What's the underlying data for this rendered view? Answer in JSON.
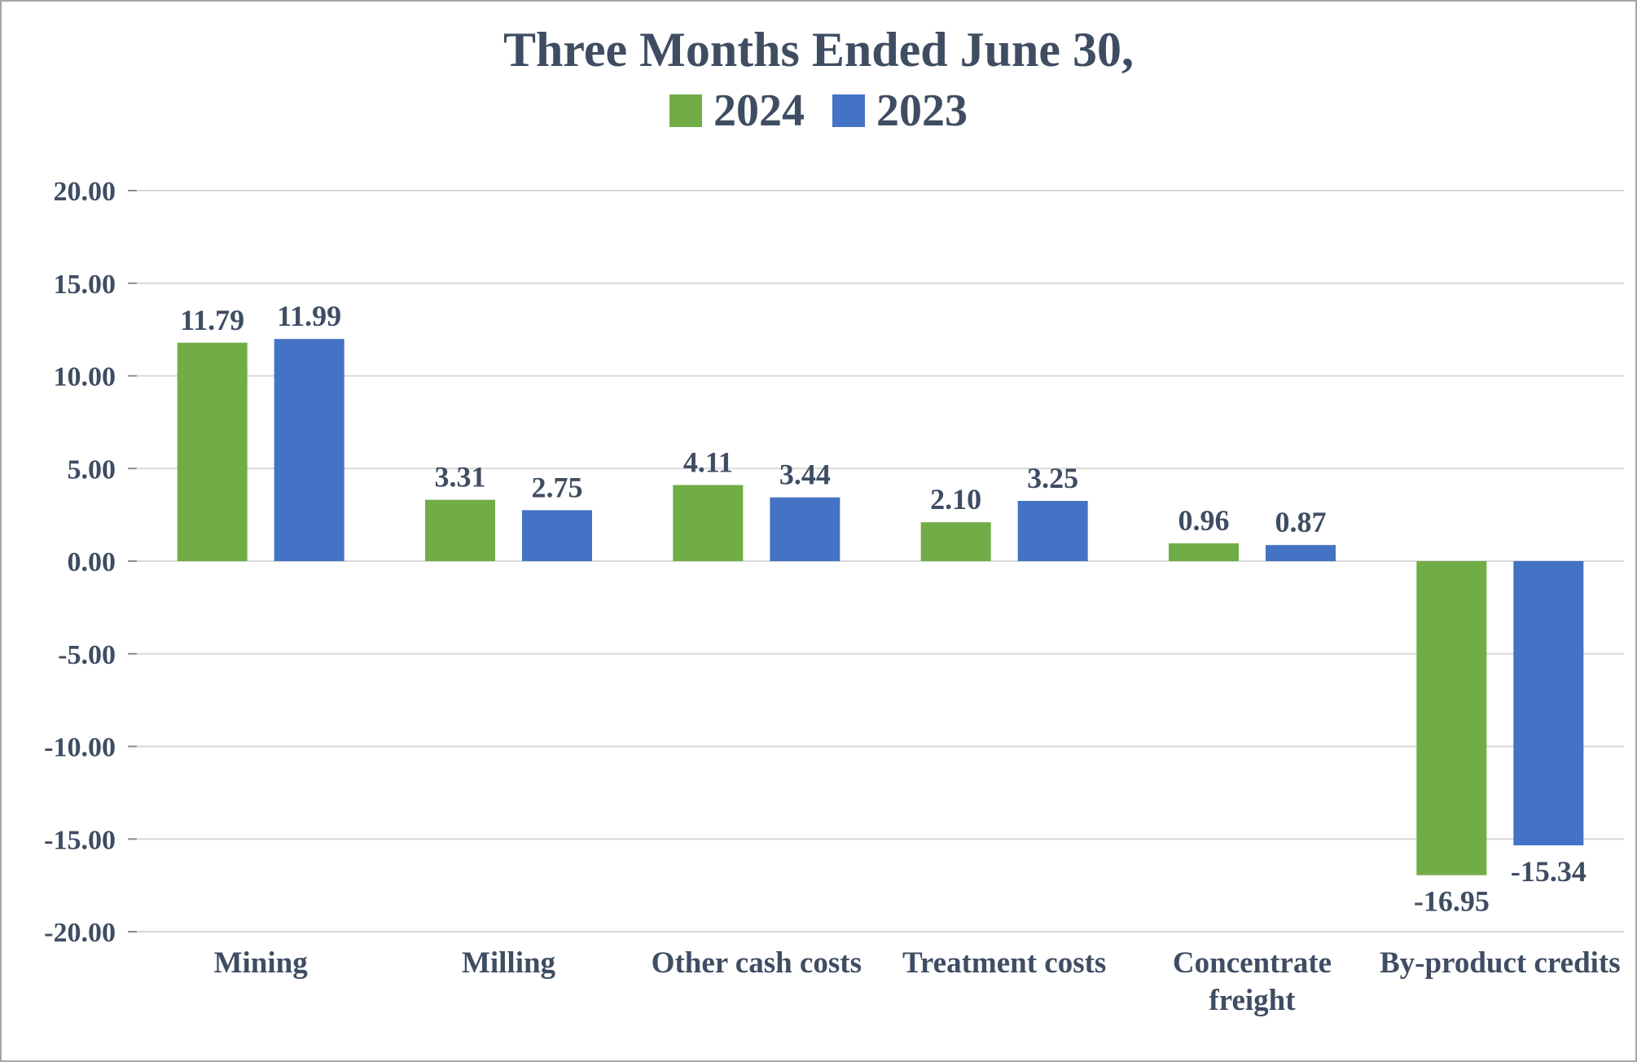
{
  "chart_data": {
    "type": "bar",
    "title": "Three Months Ended June 30,",
    "categories": [
      "Mining",
      "Milling",
      "Other cash costs",
      "Treatment costs",
      "Concentrate freight",
      "By-product credits"
    ],
    "category_lines": [
      [
        "Mining"
      ],
      [
        "Milling"
      ],
      [
        "Other cash costs"
      ],
      [
        "Treatment costs"
      ],
      [
        "Concentrate",
        "freight"
      ],
      [
        "By-product credits"
      ]
    ],
    "series": [
      {
        "name": "2024",
        "color": "#70AD47",
        "values": [
          11.79,
          3.31,
          4.11,
          2.1,
          0.96,
          -16.95
        ]
      },
      {
        "name": "2023",
        "color": "#4472C4",
        "values": [
          11.99,
          2.75,
          3.44,
          3.25,
          0.87,
          -15.34
        ]
      }
    ],
    "value_labels": [
      [
        "11.79",
        "3.31",
        "4.11",
        "2.10",
        "0.96",
        "-16.95"
      ],
      [
        "11.99",
        "2.75",
        "3.44",
        "3.25",
        "0.87",
        "-15.34"
      ]
    ],
    "xlabel": "",
    "ylabel": "",
    "ylim": [
      -20,
      20
    ],
    "ytick_step": 5,
    "ytick_labels": [
      "20.00",
      "15.00",
      "10.00",
      "5.00",
      "0.00",
      "-5.00",
      "-10.00",
      "-15.00",
      "-20.00"
    ],
    "grid": true,
    "legend_position": "top",
    "colors": {
      "text": "#3F4D63",
      "gridline": "#D9D9D9",
      "tick": "#8C8C8C",
      "background": "#FFFFFF",
      "border": "#A6A6A6"
    }
  }
}
